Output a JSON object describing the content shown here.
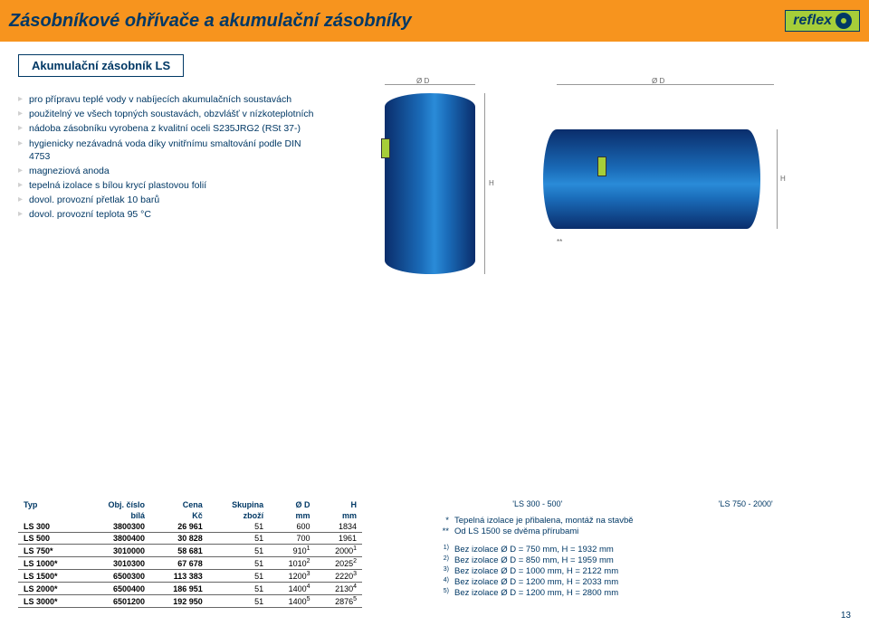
{
  "header": {
    "title": "Zásobníkové ohřívače a akumulační zásobníky",
    "logo": "reflex"
  },
  "subtitle": "Akumulační zásobník LS",
  "bullets": [
    "pro přípravu teplé vody v nabíjecích akumulačních soustavách",
    "použitelný ve všech topných soustavách, obzvlášť v nízkoteplotních",
    "nádoba zásobníku vyrobena z kvalitní oceli S235JRG2 (RSt 37-)",
    "hygienicky nezávadná voda díky vnitřnímu smaltování podle DIN 4753",
    "magneziová anoda",
    "tepelná izolace s bílou krycí plastovou folií",
    "dovol. provozní přetlak 10 barů",
    "dovol. provozní teplota 95 °C"
  ],
  "diagrams": {
    "labels": {
      "h": "H",
      "d": "Ø D",
      "star": "**"
    },
    "caption_left": "'LS 300 - 500'",
    "caption_right": "'LS 750 - 2000'"
  },
  "table": {
    "headers": {
      "typ": "Typ",
      "obj": "Obj. číslo",
      "obj2": "bílá",
      "cena": "Cena",
      "cena2": "Kč",
      "sk": "Skupina",
      "sk2": "zboží",
      "d": "Ø D",
      "d2": "mm",
      "h": "H",
      "h2": "mm"
    },
    "rows": [
      {
        "typ": "LS  300",
        "obj": "3800300",
        "cena": "26 961",
        "sk": "51",
        "d": "600",
        "h": "1834"
      },
      {
        "typ": "LS  500",
        "obj": "3800400",
        "cena": "30 828",
        "sk": "51",
        "d": "700",
        "h": "1961"
      },
      {
        "typ": "LS  750*",
        "obj": "3010000",
        "cena": "58 681",
        "sk": "51",
        "d": "910",
        "dn": "1",
        "h": "2000",
        "hn": "1"
      },
      {
        "typ": "LS 1000*",
        "obj": "3010300",
        "cena": "67 678",
        "sk": "51",
        "d": "1010",
        "dn": "2",
        "h": "2025",
        "hn": "2"
      },
      {
        "typ": "LS 1500*",
        "obj": "6500300",
        "cena": "113 383",
        "sk": "51",
        "d": "1200",
        "dn": "3",
        "h": "2220",
        "hn": "3"
      },
      {
        "typ": "LS 2000*",
        "obj": "6500400",
        "cena": "186 951",
        "sk": "51",
        "d": "1400",
        "dn": "4",
        "h": "2130",
        "hn": "4"
      },
      {
        "typ": "LS 3000*",
        "obj": "6501200",
        "cena": "192 950",
        "sk": "51",
        "d": "1400",
        "dn": "5",
        "h": "2876",
        "hn": "5"
      }
    ]
  },
  "notes": {
    "stars": [
      {
        "m": "*",
        "t": "Tepelná izolace je přibalena, montáž na stavbě"
      },
      {
        "m": "**",
        "t": "Od LS 1500 se dvěma přírubami"
      }
    ],
    "nums": [
      {
        "m": "1)",
        "t": "Bez izolace Ø D =  750 mm, H = 1932 mm"
      },
      {
        "m": "2)",
        "t": "Bez izolace Ø D =  850 mm, H = 1959 mm"
      },
      {
        "m": "3)",
        "t": "Bez izolace Ø D = 1000 mm, H = 2122 mm"
      },
      {
        "m": "4)",
        "t": "Bez izolace Ø D = 1200 mm, H = 2033 mm"
      },
      {
        "m": "5)",
        "t": "Bez izolace Ø D = 1200 mm, H = 2800 mm"
      }
    ]
  },
  "page_number": "13",
  "colors": {
    "header_bg": "#f7941e",
    "brand_navy": "#003865",
    "logo_bg": "#a6ce39"
  }
}
